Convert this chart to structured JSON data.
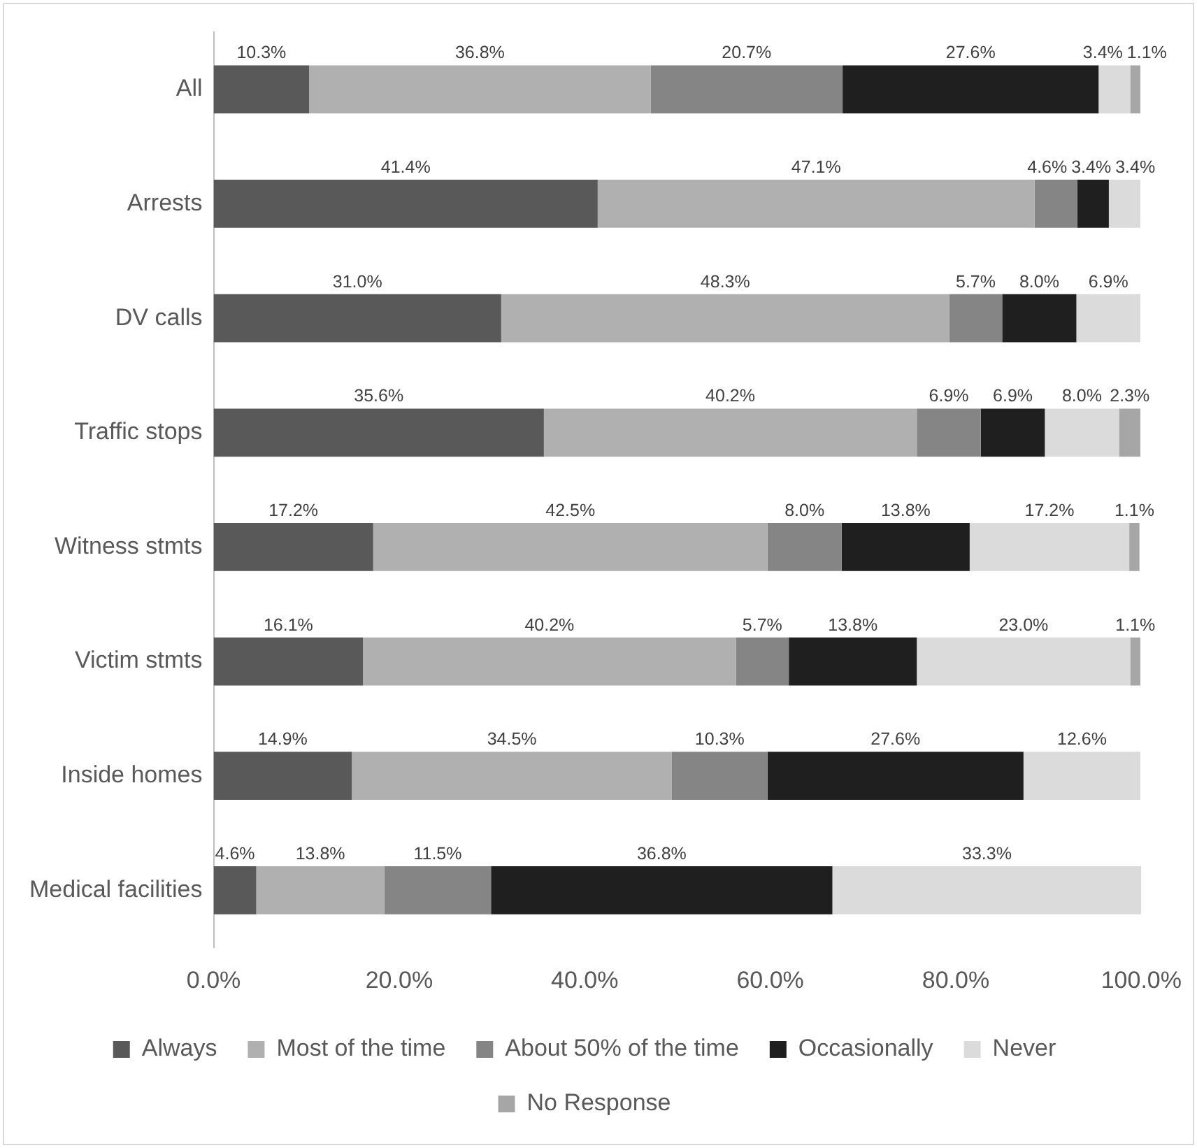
{
  "chart_data": {
    "type": "bar",
    "orientation": "horizontal",
    "stacked": true,
    "categories": [
      "All",
      "Arrests",
      "DV calls",
      "Traffic stops",
      "Witness stmts",
      "Victim stmts",
      "Inside homes",
      "Medical facilities"
    ],
    "xlim": [
      0,
      100
    ],
    "xticks": [
      {
        "value": 0,
        "label": "0.0%"
      },
      {
        "value": 20,
        "label": "20.0%"
      },
      {
        "value": 40,
        "label": "40.0%"
      },
      {
        "value": 60,
        "label": "60.0%"
      },
      {
        "value": 80,
        "label": "80.0%"
      },
      {
        "value": 100,
        "label": "100.0%"
      }
    ],
    "grid": false,
    "legend": "bottom",
    "series": [
      {
        "name": "Always",
        "color": "#595959",
        "values": [
          10.3,
          41.4,
          31.0,
          35.6,
          17.2,
          16.1,
          14.9,
          4.6
        ],
        "value_labels": [
          "10.3%",
          "41.4%",
          "31.0%",
          "35.6%",
          "17.2%",
          "16.1%",
          "14.9%",
          "4.6%"
        ]
      },
      {
        "name": "Most of the time",
        "color": "#b0b0b0",
        "values": [
          36.8,
          47.1,
          48.3,
          40.2,
          42.5,
          40.2,
          34.5,
          13.8
        ],
        "value_labels": [
          "36.8%",
          "47.1%",
          "48.3%",
          "40.2%",
          "42.5%",
          "40.2%",
          "34.5%",
          "13.8%"
        ]
      },
      {
        "name": "About 50% of the time",
        "color": "#858585",
        "values": [
          20.7,
          4.6,
          5.7,
          6.9,
          8.0,
          5.7,
          10.3,
          11.5
        ],
        "value_labels": [
          "20.7%",
          "4.6%",
          "5.7%",
          "6.9%",
          "8.0%",
          "5.7%",
          "10.3%",
          "11.5%"
        ]
      },
      {
        "name": "Occasionally",
        "color": "#1f1f1f",
        "values": [
          27.6,
          3.4,
          8.0,
          6.9,
          13.8,
          13.8,
          27.6,
          36.8
        ],
        "value_labels": [
          "27.6%",
          "3.4%",
          "8.0%",
          "6.9%",
          "13.8%",
          "13.8%",
          "27.6%",
          "36.8%"
        ]
      },
      {
        "name": "Never",
        "color": "#dbdbdb",
        "values": [
          3.4,
          3.4,
          6.9,
          8.0,
          17.2,
          23.0,
          12.6,
          33.3
        ],
        "value_labels": [
          "3.4%",
          "3.4%",
          "6.9%",
          "8.0%",
          "17.2%",
          "23.0%",
          "12.6%",
          "33.3%"
        ]
      },
      {
        "name": "No Response",
        "color": "#a6a6a6",
        "values": [
          1.1,
          null,
          null,
          2.3,
          1.1,
          1.1,
          null,
          null
        ],
        "value_labels": [
          "1.1%",
          null,
          null,
          "2.3%",
          "1.1%",
          "1.1%",
          null,
          null
        ]
      }
    ]
  }
}
